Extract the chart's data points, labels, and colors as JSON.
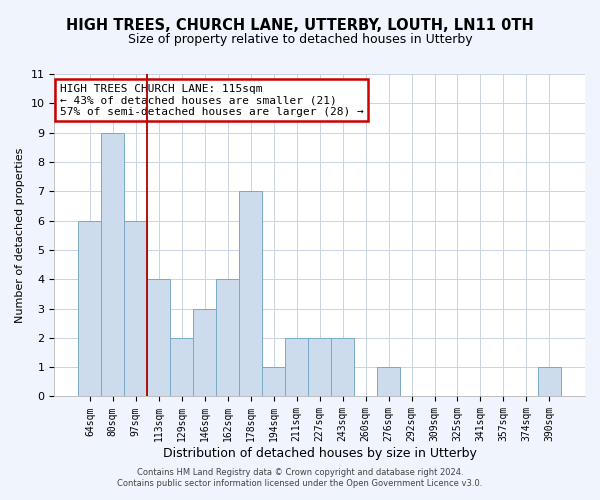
{
  "title": "HIGH TREES, CHURCH LANE, UTTERBY, LOUTH, LN11 0TH",
  "subtitle": "Size of property relative to detached houses in Utterby",
  "xlabel": "Distribution of detached houses by size in Utterby",
  "ylabel": "Number of detached properties",
  "footer_line1": "Contains HM Land Registry data © Crown copyright and database right 2024.",
  "footer_line2": "Contains public sector information licensed under the Open Government Licence v3.0.",
  "categories": [
    "64sqm",
    "80sqm",
    "97sqm",
    "113sqm",
    "129sqm",
    "146sqm",
    "162sqm",
    "178sqm",
    "194sqm",
    "211sqm",
    "227sqm",
    "243sqm",
    "260sqm",
    "276sqm",
    "292sqm",
    "309sqm",
    "325sqm",
    "341sqm",
    "357sqm",
    "374sqm",
    "390sqm"
  ],
  "values": [
    6,
    9,
    6,
    4,
    2,
    3,
    4,
    7,
    1,
    2,
    2,
    2,
    0,
    1,
    0,
    0,
    0,
    0,
    0,
    0,
    1
  ],
  "bar_color": "#ccdcec",
  "bar_edge_color": "#7aaac8",
  "vline_x": 2.5,
  "vline_color": "#aa0000",
  "annotation_box_text": "HIGH TREES CHURCH LANE: 115sqm\n← 43% of detached houses are smaller (21)\n57% of semi-detached houses are larger (28) →",
  "annotation_box_edge_color": "#cc0000",
  "annotation_box_face_color": "#ffffff",
  "ylim": [
    0,
    11
  ],
  "yticks": [
    0,
    1,
    2,
    3,
    4,
    5,
    6,
    7,
    8,
    9,
    10,
    11
  ],
  "grid_color": "#c8d4e4",
  "plot_bg_color": "#ffffff",
  "fig_bg_color": "#f0f4fc",
  "title_fontsize": 10.5,
  "subtitle_fontsize": 9
}
